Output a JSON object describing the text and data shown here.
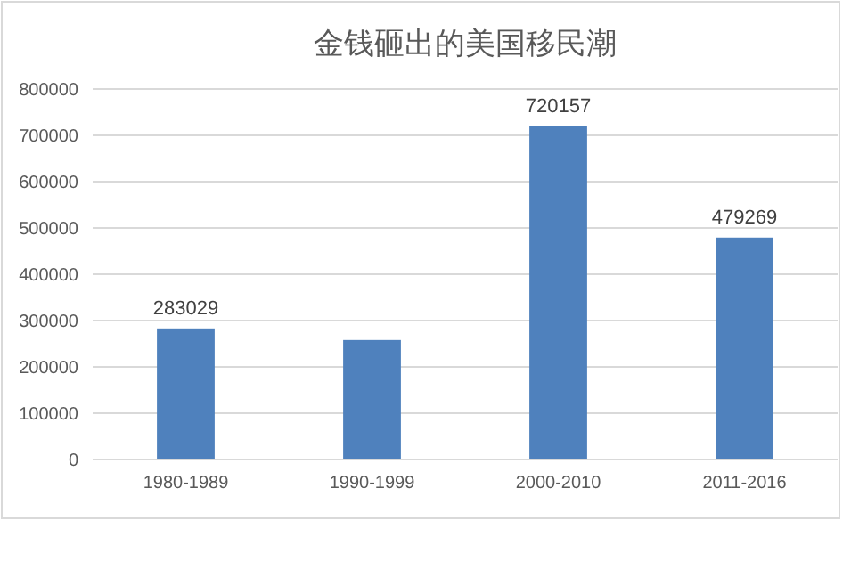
{
  "chart_data": {
    "type": "bar",
    "title": "金钱砸出的美国移民潮",
    "categories": [
      "1980-1989",
      "1990-1999",
      "2000-2010",
      "2011-2016"
    ],
    "values": [
      283029,
      258000,
      720157,
      479269
    ],
    "value_labels": [
      "283029",
      null,
      "720157",
      "479269"
    ],
    "color": "#4f81bd",
    "ylim": [
      0,
      800000
    ],
    "yticks": [
      0,
      100000,
      200000,
      300000,
      400000,
      500000,
      600000,
      700000,
      800000
    ],
    "grid": "y"
  }
}
